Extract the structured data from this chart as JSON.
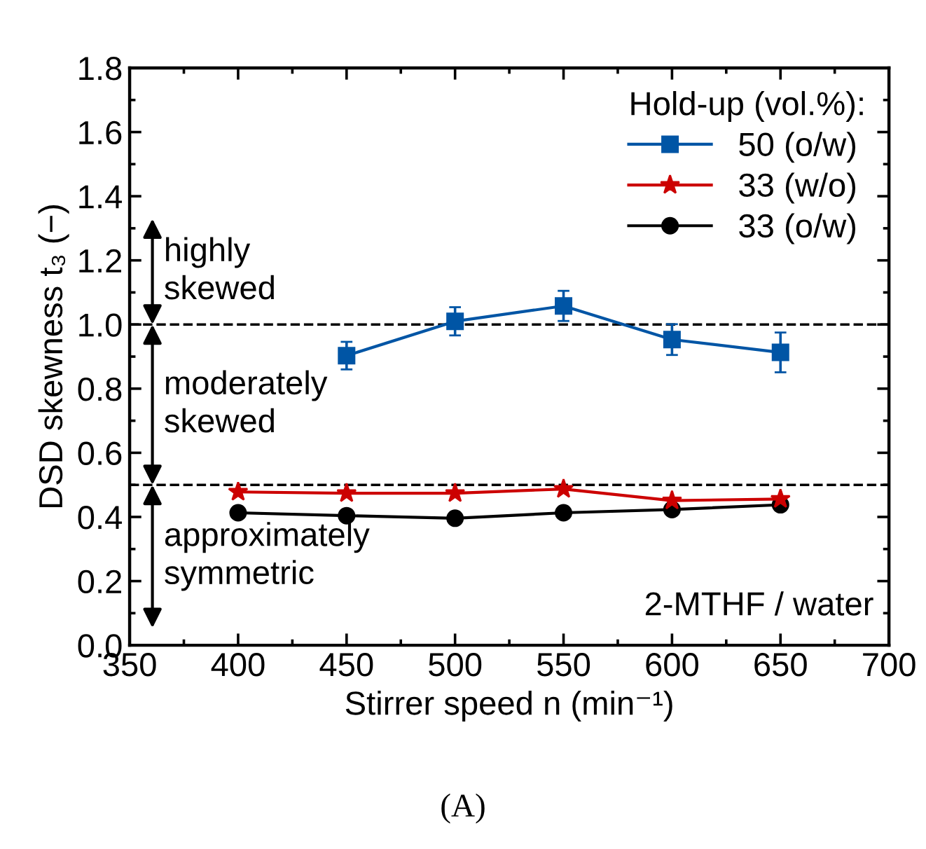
{
  "chart_data": {
    "type": "line",
    "xlabel": "Stirrer speed n (min⁻¹)",
    "ylabel": "DSD skewness t₃ (−)",
    "legend_title": "Hold-up (vol.%):",
    "x": [
      400,
      450,
      500,
      550,
      600,
      650
    ],
    "series": [
      {
        "name": "50 (o/w)",
        "color": "#0055a5",
        "marker": "square",
        "x": [
          450,
          500,
          550,
          600,
          650
        ],
        "values": [
          0.903,
          1.01,
          1.058,
          0.953,
          0.913
        ],
        "errors": [
          0.043,
          0.044,
          0.047,
          0.048,
          0.062
        ]
      },
      {
        "name": "33 (w/o)",
        "color": "#cc0000",
        "marker": "star",
        "values": [
          0.478,
          0.474,
          0.474,
          0.487,
          0.451,
          0.456
        ]
      },
      {
        "name": "33 (o/w)",
        "color": "#000000",
        "marker": "circle",
        "values": [
          0.413,
          0.404,
          0.396,
          0.413,
          0.423,
          0.438
        ]
      }
    ],
    "xlim": [
      350,
      700
    ],
    "xticks": [
      350,
      400,
      450,
      500,
      550,
      600,
      650,
      700
    ],
    "ylim": [
      0,
      1.8
    ],
    "yticks": [
      {
        "value": 0,
        "label": "0.0"
      },
      {
        "value": 0.2,
        "label": "0.2"
      },
      {
        "value": 0.4,
        "label": "0.4"
      },
      {
        "value": 0.6,
        "label": "0.6"
      },
      {
        "value": 0.8,
        "label": "0.8"
      },
      {
        "value": 1.0,
        "label": "1.0"
      },
      {
        "value": 1.2,
        "label": "1.2"
      },
      {
        "value": 1.4,
        "label": "1.4"
      },
      {
        "value": 1.6,
        "label": "1.6"
      },
      {
        "value": 1.8,
        "label": "1.8"
      }
    ],
    "ref_lines": [
      {
        "axis": "y",
        "value": 1.0,
        "label": null,
        "line_style": "dashed",
        "color": "#000000"
      },
      {
        "axis": "y",
        "value": 0.5,
        "label": null,
        "line_style": "dashed",
        "color": "#000000"
      }
    ],
    "annotations": [
      {
        "text": "highly\nskewed",
        "y": 1.0
      },
      {
        "text": "moderately\nskewed",
        "y": 0.5
      },
      {
        "text": "approximately\nsymmetric",
        "y": 0.5
      },
      "2-MTHF / water",
      "(A)"
    ],
    "legend": "top right",
    "grid": false,
    "line_style": "solid"
  }
}
